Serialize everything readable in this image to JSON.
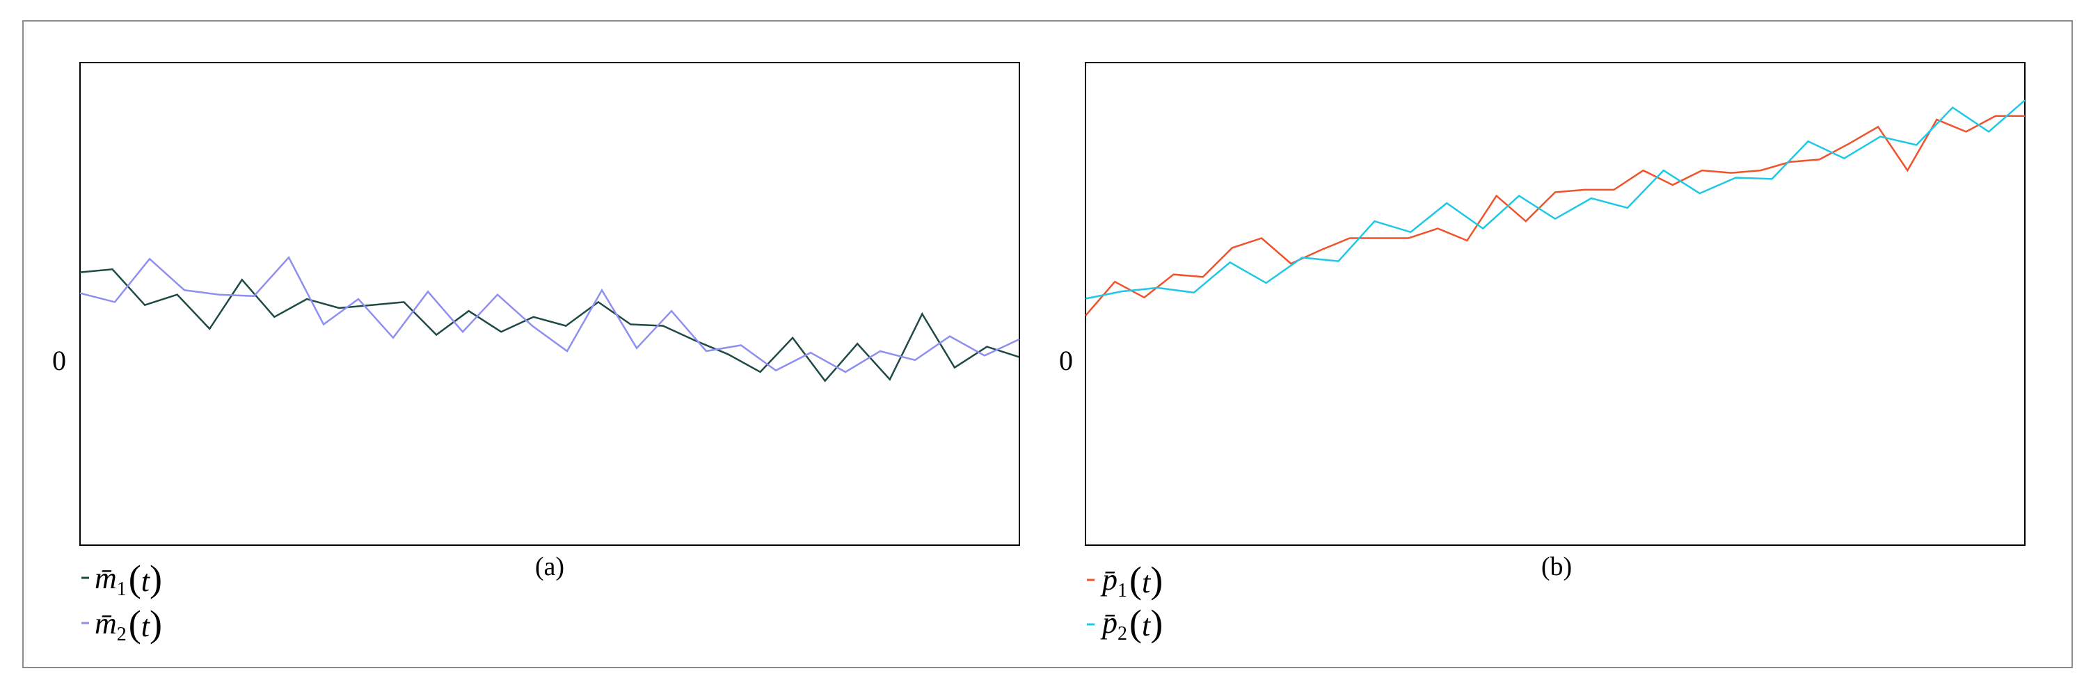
{
  "chart_data": [
    {
      "type": "line",
      "caption": "(a)",
      "y_tick_label": "0",
      "colors": [
        "#1e4a45",
        "#8f8ff0"
      ],
      "series": [
        {
          "legend": {
            "symbol": "m̄",
            "subscript": "1",
            "arg": "t"
          },
          "values": [
            0.6,
            0.62,
            0.38,
            0.45,
            0.22,
            0.55,
            0.3,
            0.42,
            0.36,
            0.38,
            0.4,
            0.18,
            0.34,
            0.2,
            0.3,
            0.24,
            0.4,
            0.25,
            0.24,
            0.14,
            0.05,
            -0.07,
            0.16,
            -0.13,
            0.12,
            -0.12,
            0.32,
            -0.04,
            0.1,
            0.03
          ]
        },
        {
          "legend": {
            "symbol": "m̄",
            "subscript": "2",
            "arg": "t"
          },
          "values": [
            0.46,
            0.4,
            0.69,
            0.48,
            0.45,
            0.44,
            0.7,
            0.25,
            0.42,
            0.16,
            0.47,
            0.2,
            0.45,
            0.24,
            0.07,
            0.48,
            0.09,
            0.34,
            0.07,
            0.11,
            -0.06,
            0.06,
            -0.07,
            0.07,
            0.01,
            0.17,
            0.04,
            0.15
          ]
        }
      ]
    },
    {
      "type": "line",
      "caption": "(b)",
      "y_tick_label": "0",
      "colors": [
        "#f0522a",
        "#1ec8e6"
      ],
      "series": [
        {
          "legend": {
            "symbol": "p̄",
            "subscript": "1",
            "arg": "t"
          },
          "values": [
            0.38,
            0.66,
            0.53,
            0.72,
            0.7,
            0.94,
            1.02,
            0.81,
            0.92,
            1.02,
            1.02,
            1.02,
            1.1,
            1.0,
            1.37,
            1.16,
            1.4,
            1.42,
            1.42,
            1.58,
            1.46,
            1.58,
            1.56,
            1.58,
            1.65,
            1.67,
            1.8,
            1.94,
            1.58,
            2.0,
            1.9,
            2.03,
            2.03
          ]
        },
        {
          "legend": {
            "symbol": "p̄",
            "subscript": "2",
            "arg": "t"
          },
          "values": [
            0.52,
            0.58,
            0.61,
            0.57,
            0.82,
            0.65,
            0.86,
            0.83,
            1.16,
            1.07,
            1.31,
            1.1,
            1.37,
            1.18,
            1.35,
            1.27,
            1.58,
            1.39,
            1.52,
            1.51,
            1.82,
            1.68,
            1.86,
            1.79,
            2.1,
            1.9,
            2.16
          ]
        }
      ]
    }
  ]
}
